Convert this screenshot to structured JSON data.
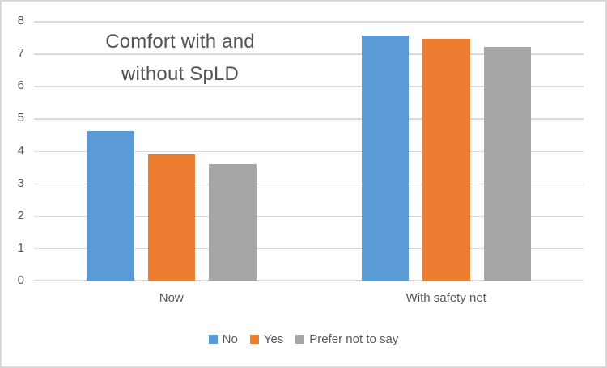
{
  "window": {
    "background": "#FFFFFF",
    "border_color": "#D9D9D9"
  },
  "chart_data": {
    "type": "bar",
    "title": "Comfort with and without SpLD",
    "title_lines": [
      "Comfort with and",
      "without SpLD"
    ],
    "categories": [
      "Now",
      "With safety net"
    ],
    "series": [
      {
        "name": "No",
        "color": "#5B9BD5",
        "values": [
          4.6,
          7.55
        ]
      },
      {
        "name": "Yes",
        "color": "#ED7D31",
        "values": [
          3.9,
          7.45
        ]
      },
      {
        "name": "Prefer not to say",
        "color": "#A6A6A6",
        "values": [
          3.6,
          7.2
        ]
      }
    ],
    "xlabel": "",
    "ylabel": "",
    "ylim": [
      0,
      8
    ],
    "yticks": [
      0,
      1,
      2,
      3,
      4,
      5,
      6,
      7,
      8
    ],
    "grid": true,
    "gridline_color": "#D9D9D9",
    "legend_position": "bottom",
    "text_color": "#595959",
    "title_color": "#535353"
  }
}
